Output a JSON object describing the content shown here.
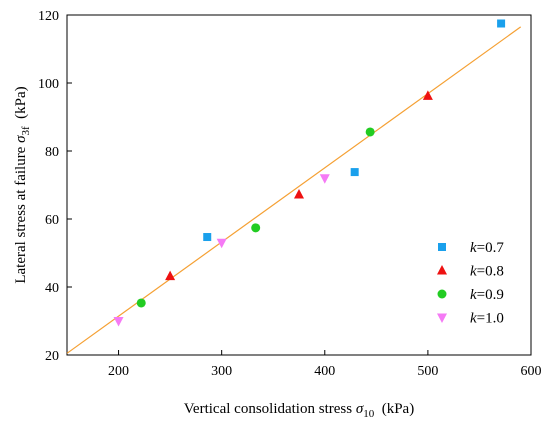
{
  "chart_data": {
    "type": "scatter",
    "title": "",
    "xlabel": {
      "prefix": "Vertical consolidation stress ",
      "sym": "σ",
      "sub": "10",
      "unit": "  (kPa)"
    },
    "ylabel": {
      "prefix": "Lateral stress at failure ",
      "sym": "σ",
      "sub": "3f",
      "unit": "  (kPa)"
    },
    "xlim": [
      150,
      600
    ],
    "ylim": [
      20,
      120
    ],
    "x_ticks": [
      200,
      300,
      400,
      500,
      600
    ],
    "y_ticks": [
      20,
      40,
      60,
      80,
      100,
      120
    ],
    "grid": false,
    "legend_position": "bottom-right",
    "fit_line": {
      "x": [
        150,
        590
      ],
      "y": [
        20.5,
        116.5
      ],
      "color": "#F5A033"
    },
    "series": [
      {
        "name": "k=0.7",
        "var": "k",
        "val": "=0.7",
        "marker": "square",
        "color": "#1AA0EC",
        "points": [
          [
            286,
            54.7
          ],
          [
            429,
            73.8
          ],
          [
            571,
            117.5
          ]
        ]
      },
      {
        "name": "k=0.8",
        "var": "k",
        "val": "=0.8",
        "marker": "triangle-up",
        "color": "#EE1111",
        "points": [
          [
            250,
            43.2
          ],
          [
            375,
            67.2
          ],
          [
            500,
            96.2
          ]
        ]
      },
      {
        "name": "k=0.9",
        "var": "k",
        "val": "=0.9",
        "marker": "circle",
        "color": "#22CC22",
        "points": [
          [
            222,
            35.3
          ],
          [
            333,
            57.4
          ],
          [
            444,
            85.6
          ]
        ]
      },
      {
        "name": "k=1.0",
        "var": "k",
        "val": "=1.0",
        "marker": "triangle-down",
        "color": "#F57AF5",
        "points": [
          [
            200,
            30.0
          ],
          [
            300,
            53.0
          ],
          [
            400,
            72.0
          ]
        ]
      }
    ]
  }
}
